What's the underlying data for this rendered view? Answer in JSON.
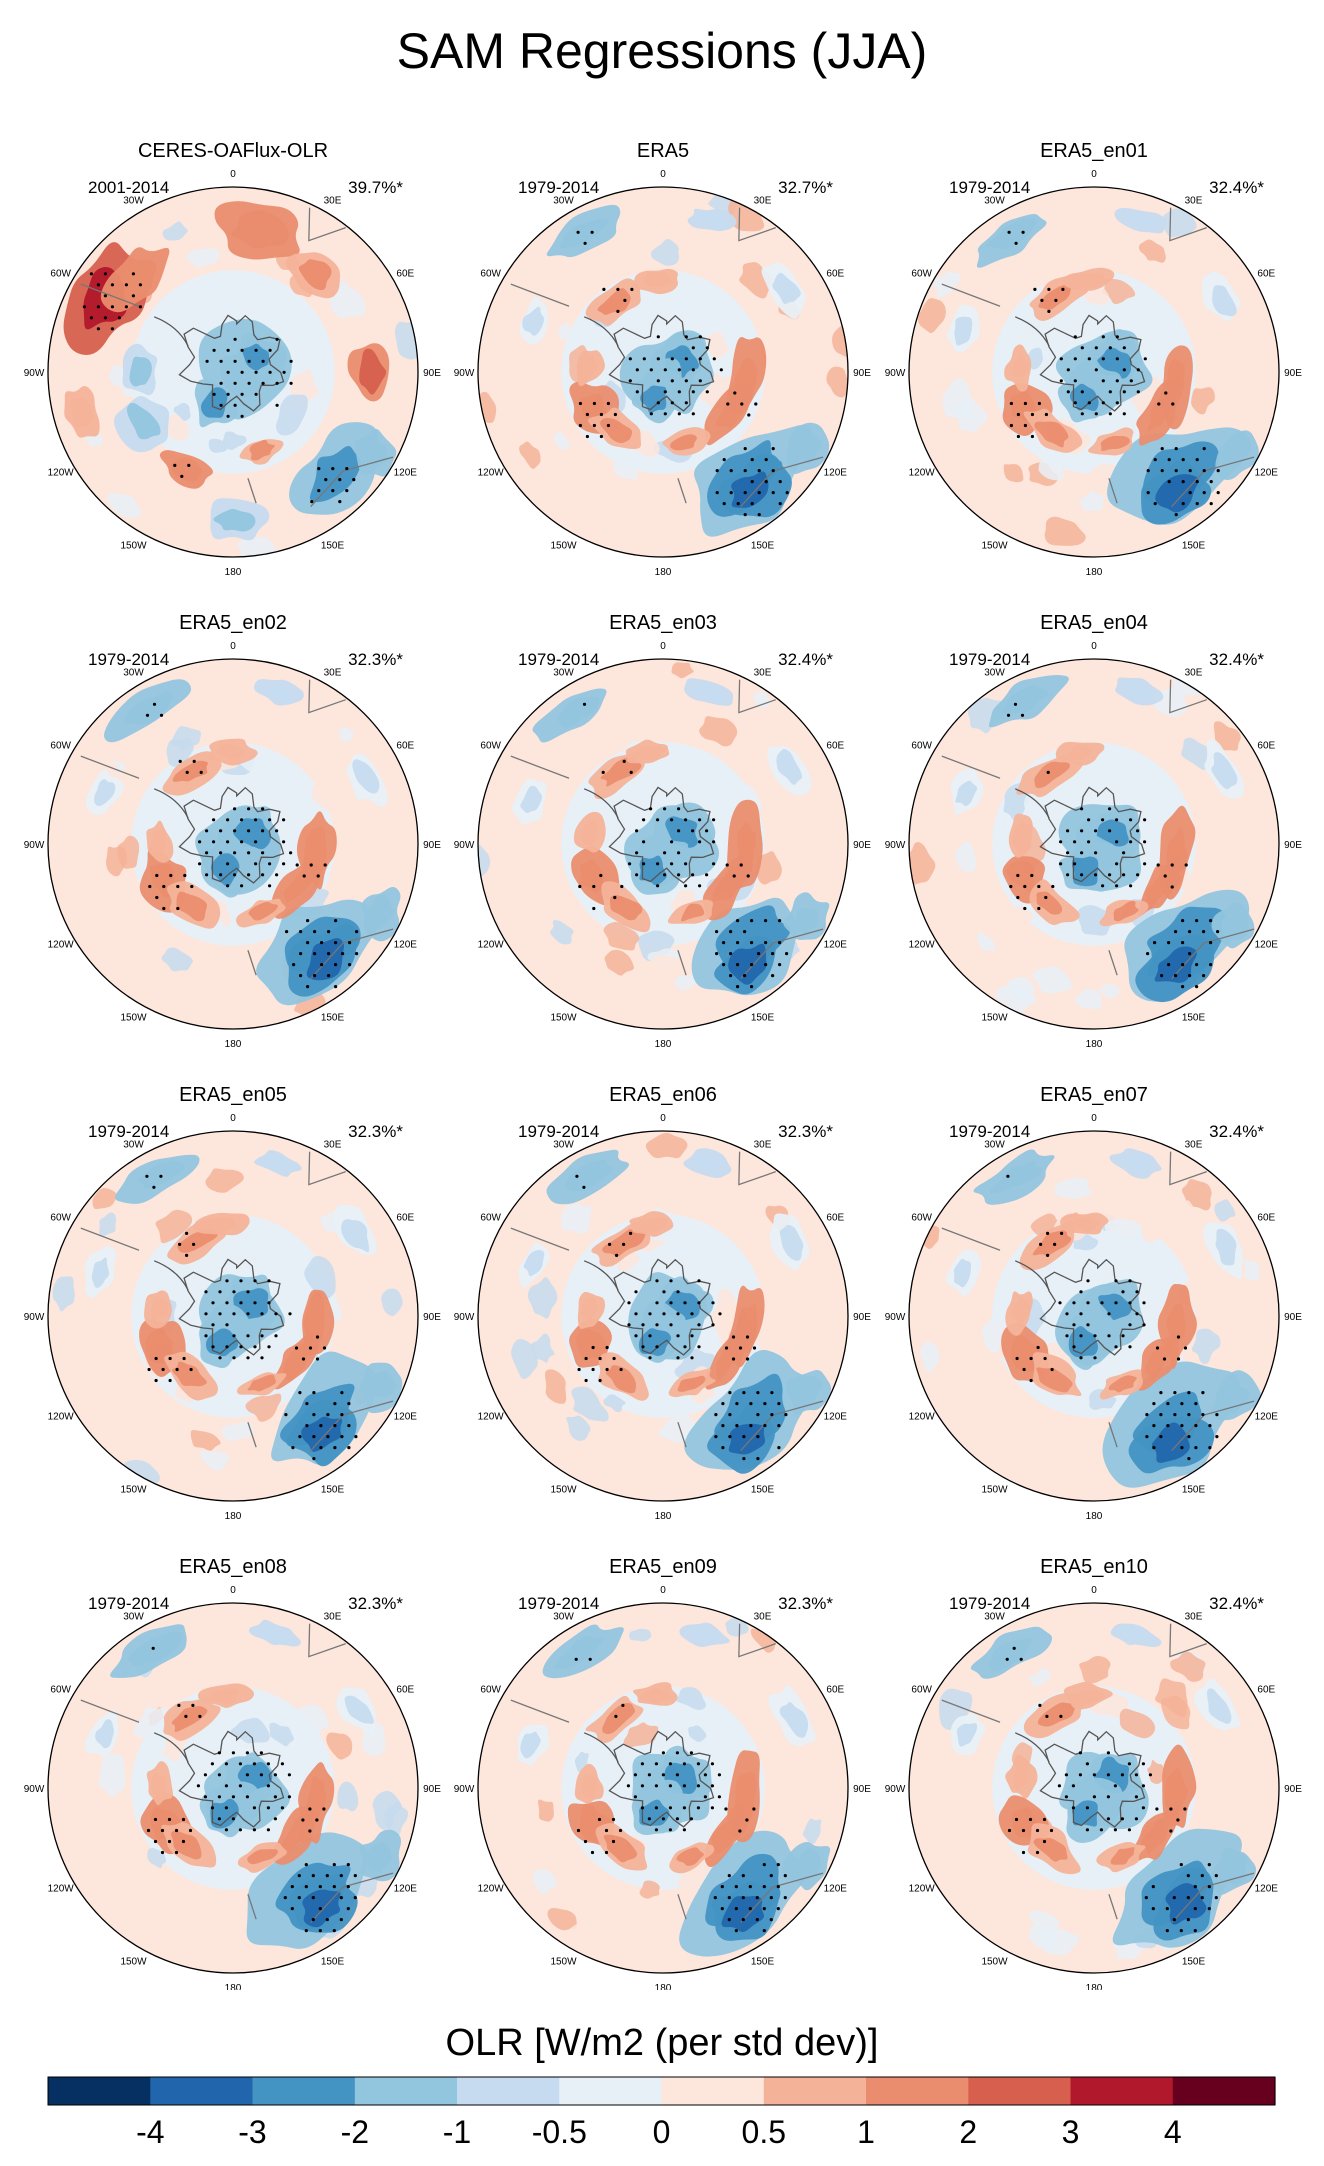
{
  "figure": {
    "title": "SAM Regressions (JJA)"
  },
  "chart_data": {
    "type": "heatmap",
    "projection": "south-polar-stereographic",
    "variable": "OLR",
    "colorbar_label": "OLR [W/m2 (per std dev)]",
    "colorbar_levels": [
      "-4",
      "-3",
      "-2",
      "-1",
      "-0.5",
      "0",
      "0.5",
      "1",
      "2",
      "3",
      "4"
    ],
    "colorbar_colors": [
      "#053061",
      "#2166ac",
      "#4393c3",
      "#92c5de",
      "#c6dbef",
      "#e8f0f7",
      "#fde6dc",
      "#f4b399",
      "#ea8d6e",
      "#d6604d",
      "#b2182b",
      "#67001f"
    ],
    "longitude_labels": [
      "0",
      "30E",
      "60E",
      "90E",
      "120E",
      "150E",
      "180",
      "150W",
      "120W",
      "90W",
      "60W",
      "30W"
    ],
    "panels": [
      {
        "name": "CERES-OAFlux-OLR",
        "period": "2001-2014",
        "variance": "39.7%*"
      },
      {
        "name": "ERA5",
        "period": "1979-2014",
        "variance": "32.7%*"
      },
      {
        "name": "ERA5_en01",
        "period": "1979-2014",
        "variance": "32.4%*"
      },
      {
        "name": "ERA5_en02",
        "period": "1979-2014",
        "variance": "32.3%*"
      },
      {
        "name": "ERA5_en03",
        "period": "1979-2014",
        "variance": "32.4%*"
      },
      {
        "name": "ERA5_en04",
        "period": "1979-2014",
        "variance": "32.4%*"
      },
      {
        "name": "ERA5_en05",
        "period": "1979-2014",
        "variance": "32.3%*"
      },
      {
        "name": "ERA5_en06",
        "period": "1979-2014",
        "variance": "32.3%*"
      },
      {
        "name": "ERA5_en07",
        "period": "1979-2014",
        "variance": "32.4%*"
      },
      {
        "name": "ERA5_en08",
        "period": "1979-2014",
        "variance": "32.3%*"
      },
      {
        "name": "ERA5_en09",
        "period": "1979-2014",
        "variance": "32.3%*"
      },
      {
        "name": "ERA5_en10",
        "period": "1979-2014",
        "variance": "32.4%*"
      }
    ],
    "anomaly_pattern": [
      {
        "feature": "Antarctic interior",
        "sign": "negative",
        "value": -2
      },
      {
        "feature": "Pacific sector 120E-150E",
        "sign": "negative",
        "value": -3
      },
      {
        "feature": "Indian Ocean ring 90E",
        "sign": "positive",
        "value": 2
      },
      {
        "feature": "South Pacific ring 120W",
        "sign": "positive",
        "value": 1.5
      },
      {
        "feature": "South Atlantic subtropics 30W",
        "sign": "negative",
        "value": -1.5
      }
    ]
  }
}
